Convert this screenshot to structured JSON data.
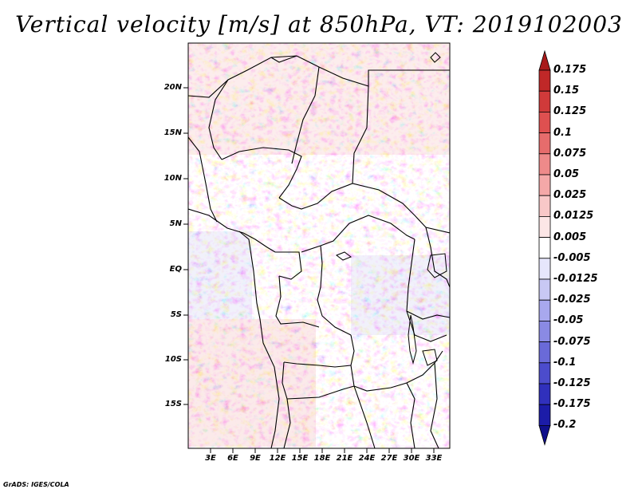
{
  "title": "Vertical velocity [m/s] at 850hPa, VT: 2019102003",
  "footer": "GrADS: IGES/COLA",
  "lat_labels": [
    "20N",
    "15N",
    "10N",
    "5N",
    "EQ",
    "5S",
    "10S",
    "15S"
  ],
  "lon_labels": [
    "3E",
    "6E",
    "9E",
    "12E",
    "15E",
    "18E",
    "21E",
    "24E",
    "27E",
    "30E",
    "33E"
  ],
  "colorbar": {
    "labels": [
      "0.175",
      "0.15",
      "0.125",
      "0.1",
      "0.075",
      "0.05",
      "0.025",
      "0.0125",
      "0.005",
      "-0.005",
      "-0.0125",
      "-0.025",
      "-0.05",
      "-0.075",
      "-0.1",
      "-0.125",
      "-0.175",
      "-0.2"
    ],
    "colors": [
      "#a81a1a",
      "#c02828",
      "#d03a3a",
      "#de5050",
      "#e66c6c",
      "#ee8a8a",
      "#f4a8a8",
      "#f8c8c8",
      "#fce6e6",
      "#ffffff",
      "#e6e6fc",
      "#c8c8f4",
      "#a8a8ee",
      "#8a8ae4",
      "#6a6ad8",
      "#4c4ccc",
      "#3030bc",
      "#1c1ca8",
      "#10108c"
    ]
  }
}
